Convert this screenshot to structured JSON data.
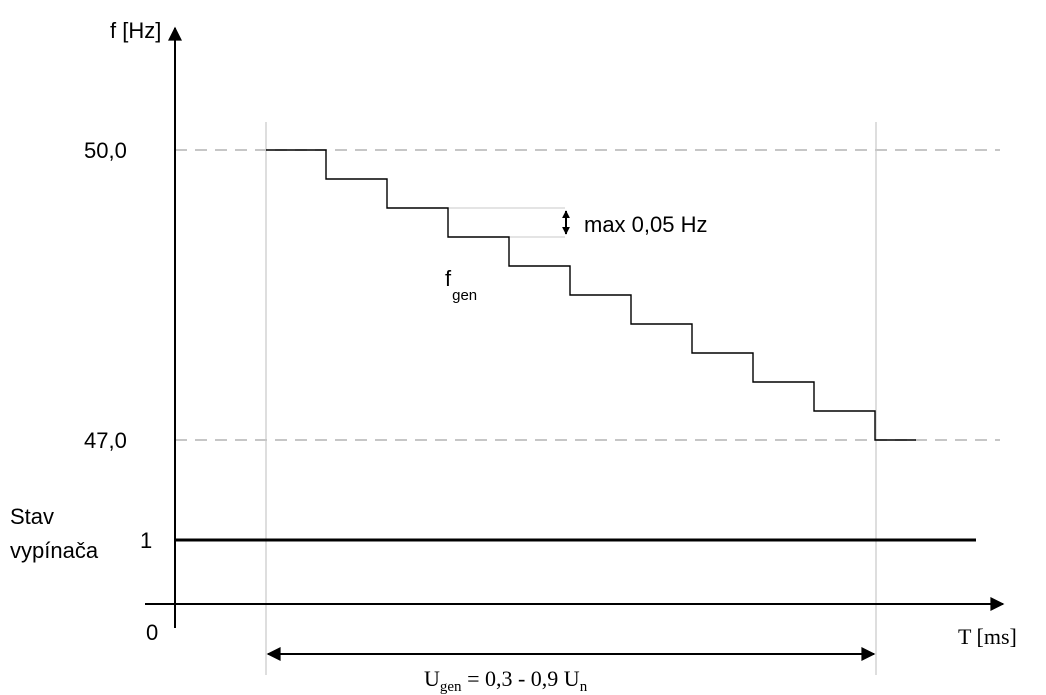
{
  "axes": {
    "y_label": "f [Hz]",
    "x_label": "T [ms]",
    "origin_label": "0"
  },
  "y_ticks": {
    "upper": "50,0",
    "lower": "47,0"
  },
  "breaker_state": {
    "label_line1": "Stav",
    "label_line2": "vypínača",
    "value": "1"
  },
  "step_annotation": "max 0,05 Hz",
  "curve_label": {
    "main": "f",
    "sub": "gen"
  },
  "range_label": {
    "u1": "U",
    "u1_sub": "gen",
    "middle": " = 0,3 - 0,9 ",
    "u2": "U",
    "u2_sub": "n"
  },
  "colors": {
    "line": "#000000",
    "guide": "#b3b3b3",
    "vertical_guide": "#c8c8c8"
  }
}
